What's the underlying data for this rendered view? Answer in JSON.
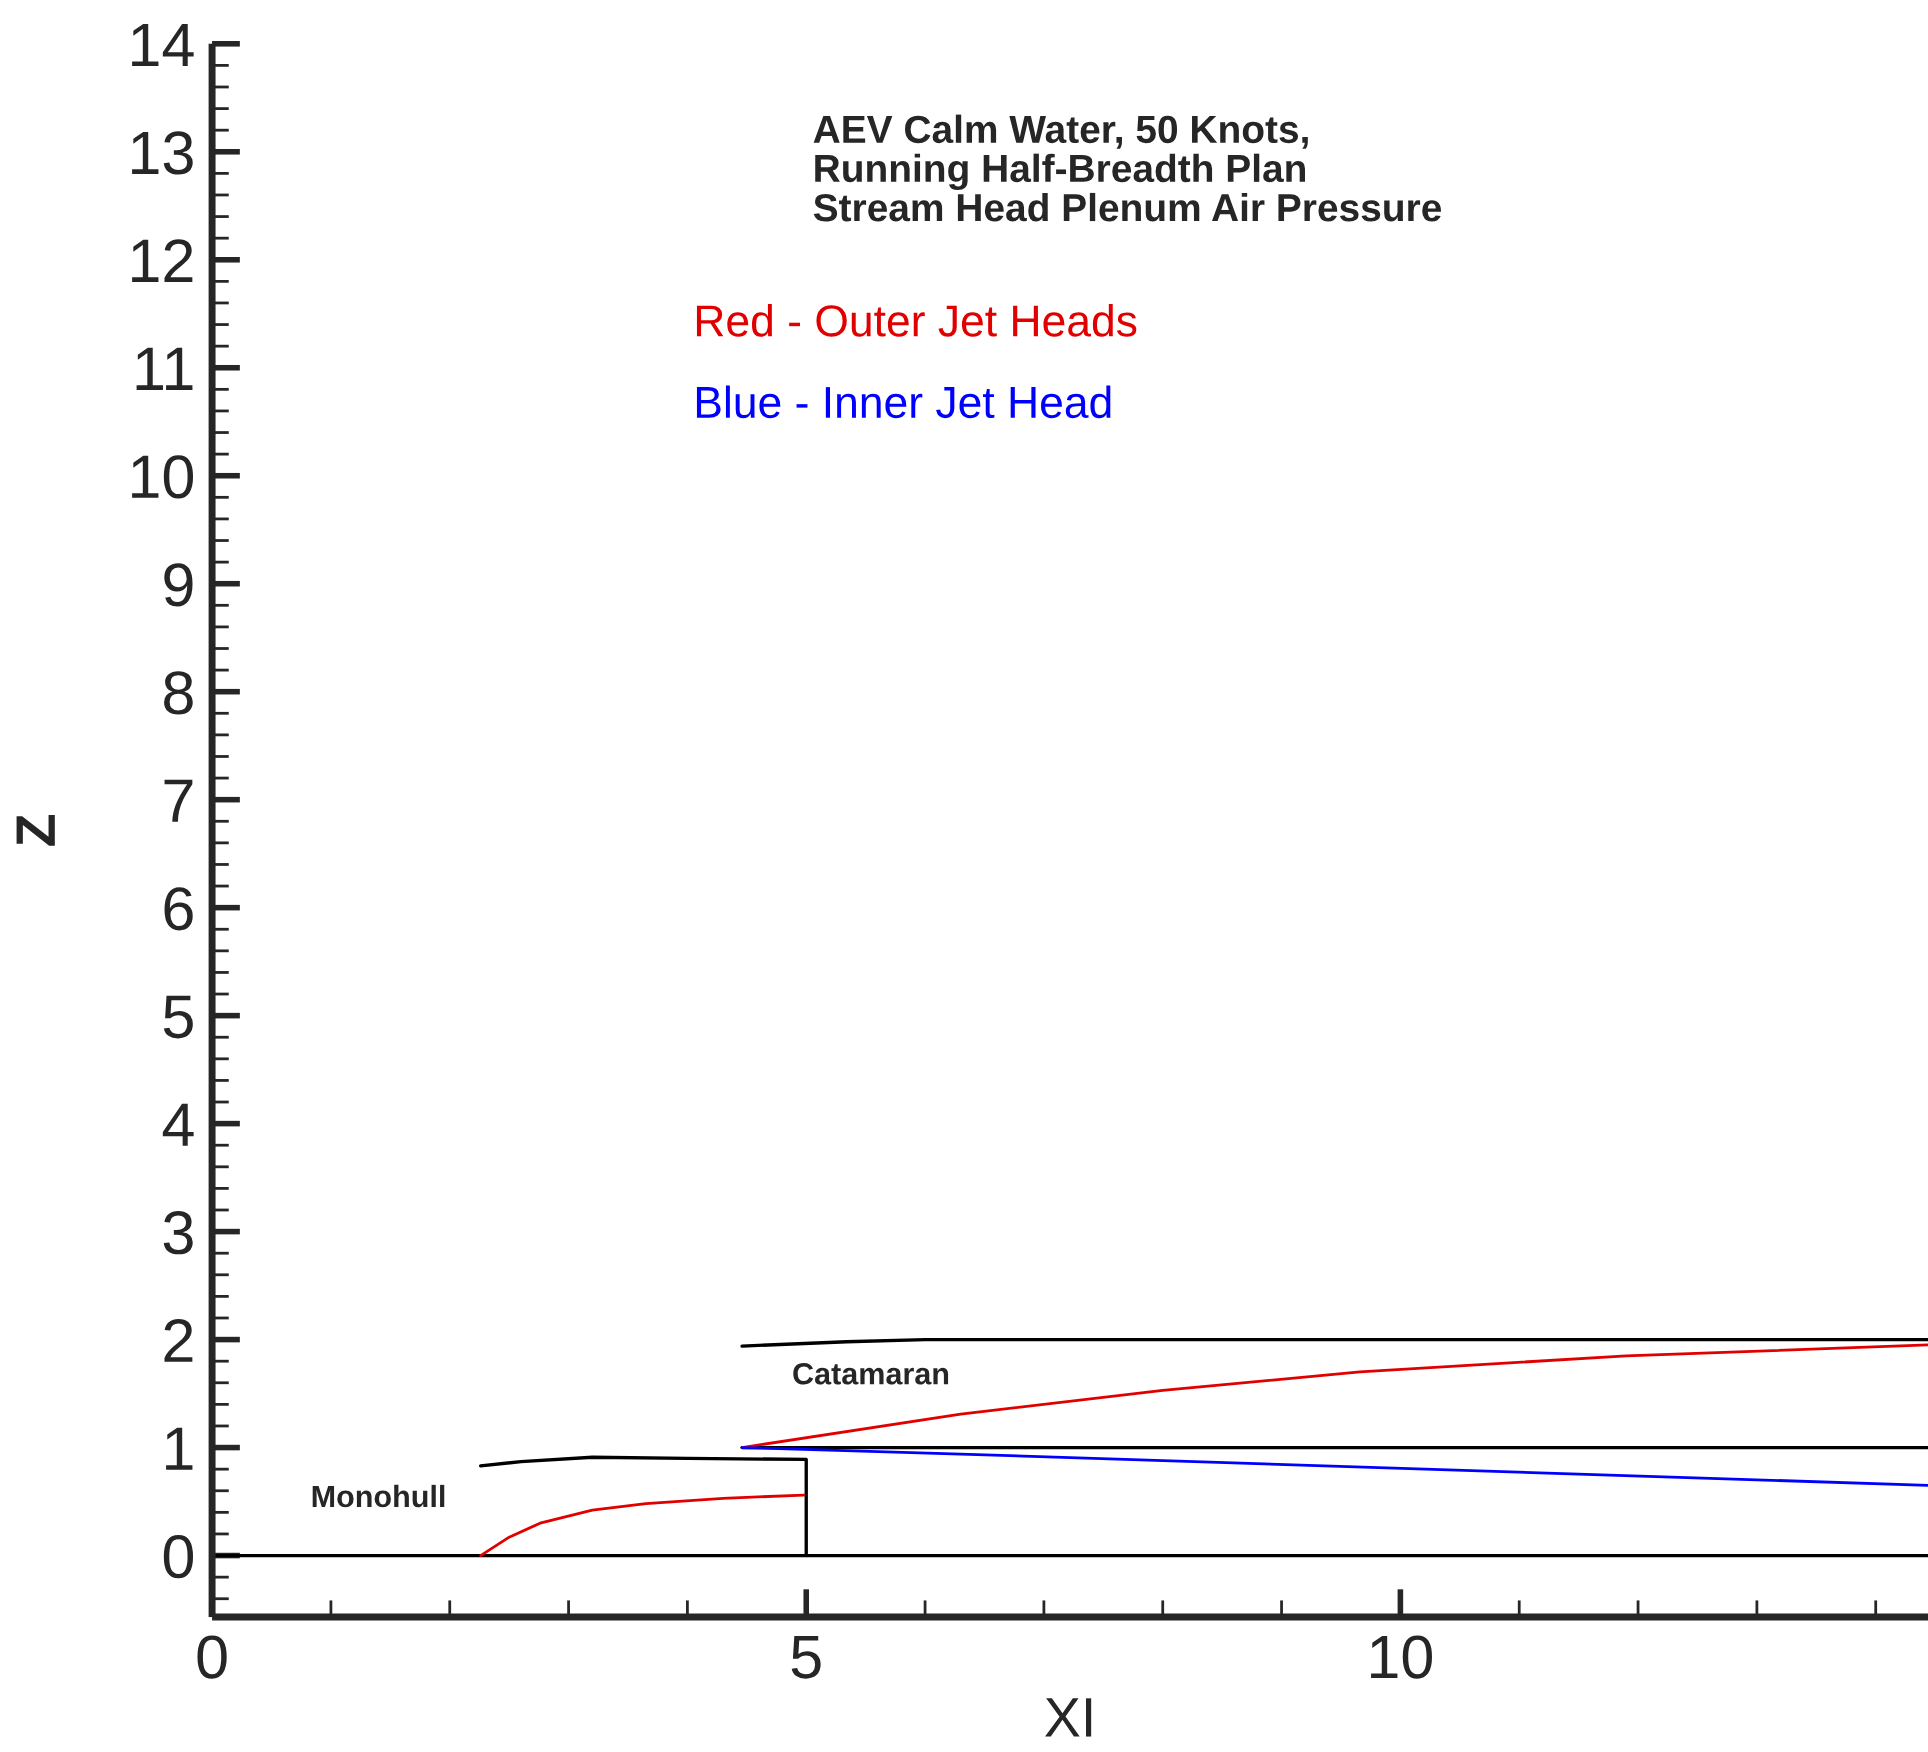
{
  "chart_data": {
    "type": "line",
    "title": "AEV Calm Water, 50 Knots,\nRunning Half-Breadth Plan\nStream Head Plenum Air Pressure",
    "xlabel": "XI",
    "ylabel": "Z",
    "series": [
      {
        "color": "#000000",
        "x": [
          0,
          14.44
        ],
        "values": [
          0,
          0
        ]
      },
      {
        "color": "#000000",
        "x": [
          2.26,
          2.6,
          3.2,
          4.0,
          5.0,
          5.0
        ],
        "values": [
          0.83,
          0.87,
          0.91,
          0.9,
          0.89,
          0
        ]
      },
      {
        "color": "#e00000",
        "x": [
          2.26,
          2.5,
          2.76,
          3.2,
          3.65,
          4.3,
          4.98
        ],
        "values": [
          0,
          0.17,
          0.3,
          0.42,
          0.48,
          0.53,
          0.56
        ]
      },
      {
        "color": "#000000",
        "x": [
          4.46,
          5.34,
          6.0,
          8.0,
          14.44
        ],
        "values": [
          1.94,
          1.98,
          2.0,
          2.0,
          2.0
        ]
      },
      {
        "color": "#000000",
        "x": [
          4.46,
          14.44
        ],
        "values": [
          1.0,
          1.0
        ]
      },
      {
        "name": "Red - Outer Jet Heads",
        "color": "#e00000",
        "x": [
          4.46,
          6.3,
          8.0,
          9.66,
          11.9,
          14.44
        ],
        "values": [
          1.0,
          1.31,
          1.53,
          1.7,
          1.85,
          1.95
        ]
      },
      {
        "name": "Blue - Inner Jet Head",
        "color": "#0000ff",
        "x": [
          4.46,
          6.3,
          14.44
        ],
        "values": [
          1.0,
          0.94,
          0.65
        ]
      }
    ],
    "annotations": [
      "Monohull",
      "Catamaran"
    ],
    "xlim": [
      0,
      14.44
    ],
    "ylim": [
      -0.57,
      14
    ],
    "xticks": [
      0,
      5,
      10
    ],
    "yticks": [
      0,
      1,
      2,
      3,
      4,
      5,
      6,
      7,
      8,
      9,
      10,
      11,
      12,
      13,
      14
    ],
    "legend": "top",
    "grid": false
  }
}
